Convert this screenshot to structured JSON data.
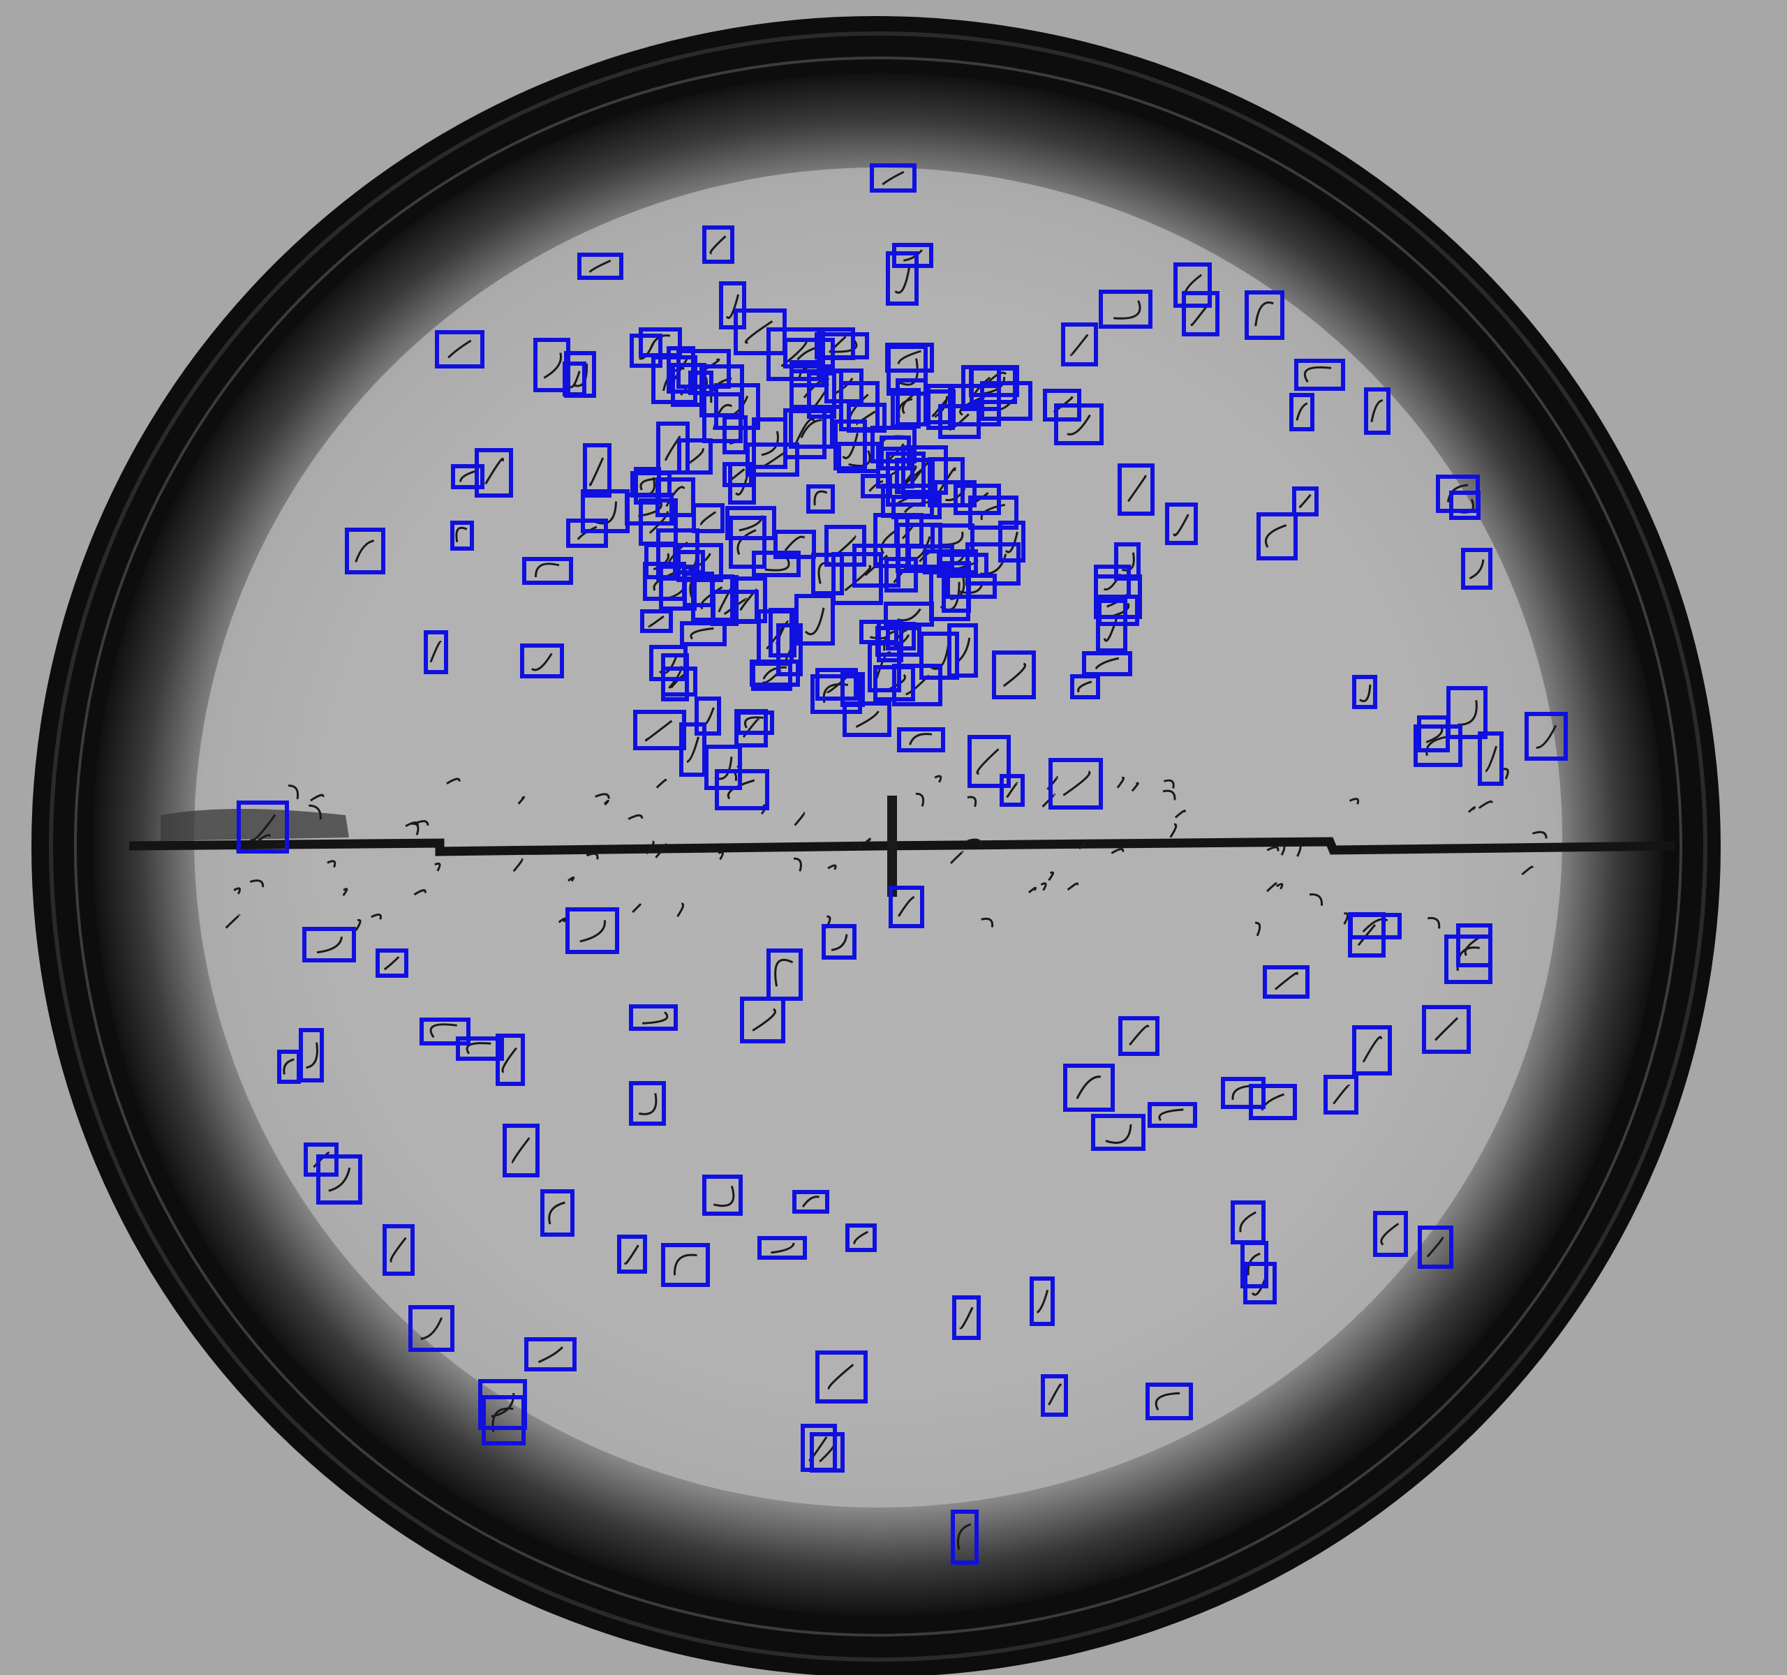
{
  "scene": {
    "subject": "petri-dish",
    "colors": {
      "background": "#a7a7a7",
      "dish_rim": "#0d0d0d",
      "dish_interior": "#b0b0b0",
      "seam_line": "#141414",
      "worm": "#1a1a1a",
      "detection_box": "#1010e0"
    }
  },
  "detections": {
    "count": 240,
    "box_color": "#1010e0"
  }
}
